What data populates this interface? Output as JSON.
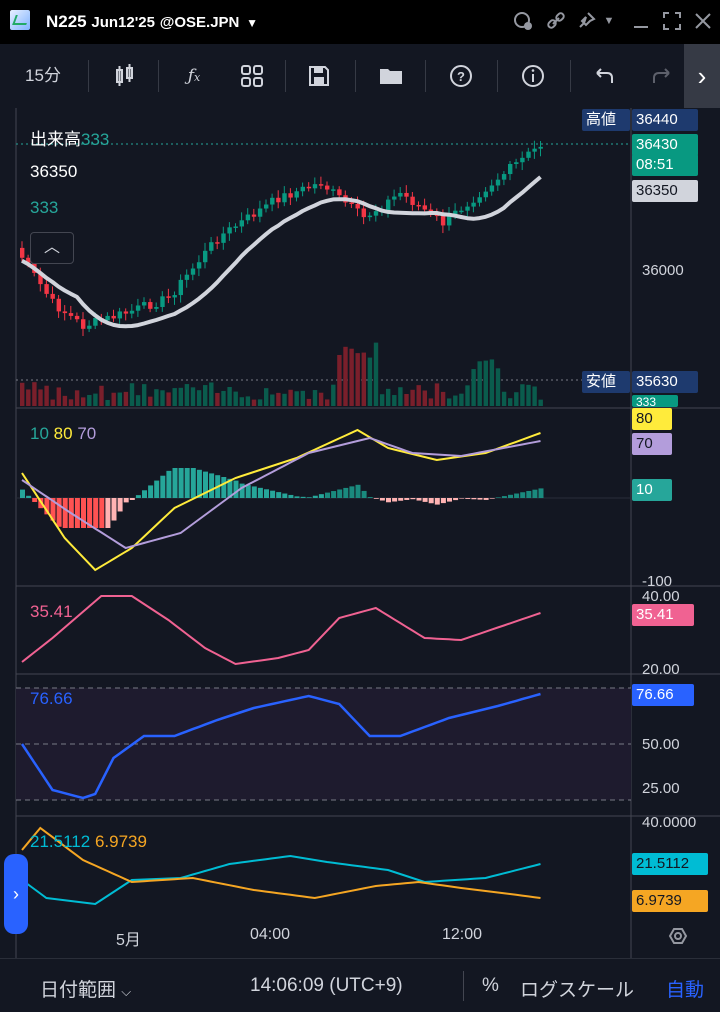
{
  "titlebar": {
    "title": "N225",
    "date": "Jun12'25",
    "exchange": "@OSE.JPN",
    "icons": [
      "chat-bubble-icon",
      "link-icon",
      "pin-icon",
      "dropdown-icon",
      "minimize-icon",
      "maximize-icon",
      "close-icon"
    ]
  },
  "toolbar": {
    "interval": "15分",
    "items": [
      "candle-style-icon",
      "indicators-fx-icon",
      "layout-grid-icon",
      "save-icon",
      "folder-icon",
      "help-icon",
      "info-icon",
      "undo-icon",
      "redo-icon"
    ]
  },
  "legend": {
    "volume_label": "出来高",
    "volume_value": "333",
    "price": "36350",
    "volume_line2": "333",
    "macd_a": "10",
    "macd_b": "80",
    "macd_c": "70",
    "rsi": "35.41",
    "stoch": "76.66",
    "adx_a": "21.5112",
    "adx_b": "6.9739"
  },
  "price_axis": {
    "high_label": "高値",
    "high_value": "36440",
    "last_price": "36430",
    "countdown": "08:51",
    "ma_value": "36350",
    "tick_36000": "36000",
    "low_label": "安値",
    "low_value": "35630",
    "vol_tag": "333"
  },
  "macd_axis": {
    "tag1": "80",
    "tag2": "70",
    "tag3": "10",
    "tick_low": "-100"
  },
  "rsi_axis": {
    "tick_top": "40.00",
    "tag": "35.41",
    "tick_bottom": "20.00"
  },
  "stoch_axis": {
    "tag": "76.66",
    "tick_mid": "50.00",
    "tick_low": "25.00"
  },
  "adx_axis": {
    "tick_top": "40.0000",
    "tag1": "21.5112",
    "tag2": "6.9739"
  },
  "time_axis": [
    "5月",
    "04:00",
    "12:00"
  ],
  "colors": {
    "up": "#089981",
    "down": "#f23645",
    "bg": "#131722",
    "accent": "#2962ff"
  },
  "bottombar": {
    "date_range": "日付範囲",
    "clock": "14:06:09 (UTC+9)",
    "percent": "%",
    "log_scale": "ログスケール",
    "auto": "自動"
  }
}
